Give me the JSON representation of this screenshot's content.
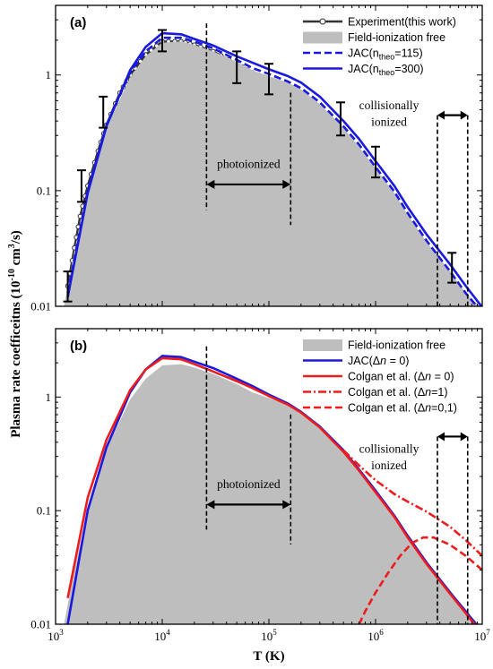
{
  "figure": {
    "ylabel": "Plasma rate coefficeitns (10",
    "ylabel_exp": "-10",
    "ylabel_units": " cm",
    "ylabel_units_exp": "3",
    "ylabel_tail": "/s)",
    "xlabel": "T (K)"
  },
  "chart_data": [
    {
      "panel": "(a)",
      "type": "line",
      "x_scale": "log",
      "y_scale": "log",
      "xlim": [
        1000,
        10000000
      ],
      "ylim": [
        0.01,
        4
      ],
      "x_ticks": [
        "10^3",
        "10^4",
        "10^5",
        "10^6",
        "10^7"
      ],
      "y_ticks": [
        "0.01",
        "0.1",
        "1"
      ],
      "series": [
        {
          "name": "Experiment(this work)",
          "style": "dark-gray line with circle markers",
          "color": "#333333",
          "x": [
            1300,
            1500,
            1700,
            2000,
            2500,
            3000,
            4000,
            5000,
            7000,
            10000,
            15000,
            20000,
            30000,
            50000,
            70000,
            100000,
            150000,
            200000,
            300000,
            500000,
            700000,
            1000000,
            1500000,
            2000000,
            3000000,
            5000000,
            7000000,
            10000000
          ],
          "y": [
            0.015,
            0.032,
            0.06,
            0.11,
            0.22,
            0.37,
            0.7,
            1.0,
            1.5,
            1.95,
            1.95,
            1.82,
            1.6,
            1.25,
            1.05,
            0.92,
            0.82,
            0.7,
            0.52,
            0.32,
            0.22,
            0.14,
            0.085,
            0.055,
            0.032,
            0.018,
            0.012,
            0.009
          ]
        },
        {
          "name": "Field-ionization free",
          "style": "gray filled area",
          "color": "#bebebe",
          "x": [
            1200,
            1500,
            2000,
            3000,
            5000,
            7000,
            10000,
            15000,
            20000,
            30000,
            50000,
            70000,
            100000,
            150000,
            200000,
            300000,
            500000,
            700000,
            1000000,
            1500000,
            2000000,
            3000000,
            5000000,
            7000000,
            10000000
          ],
          "y": [
            0.01,
            0.03,
            0.1,
            0.35,
            0.95,
            1.45,
            1.9,
            1.95,
            1.82,
            1.6,
            1.3,
            1.1,
            0.98,
            0.86,
            0.75,
            0.56,
            0.35,
            0.24,
            0.155,
            0.095,
            0.062,
            0.036,
            0.02,
            0.013,
            0.0095
          ]
        },
        {
          "name": "JAC(n_theo=115)",
          "label_main": "JAC(n",
          "label_sub": "theo",
          "label_tail": "=115)",
          "style": "blue dashed",
          "color": "#1a1adc",
          "x": [
            1300,
            2000,
            3000,
            5000,
            7000,
            10000,
            15000,
            20000,
            30000,
            50000,
            70000,
            100000,
            150000,
            200000,
            300000,
            500000,
            700000,
            1000000,
            1500000,
            2000000,
            3000000,
            5000000,
            7000000,
            10000000
          ],
          "y": [
            0.013,
            0.1,
            0.37,
            1.05,
            1.6,
            2.1,
            2.1,
            1.95,
            1.7,
            1.35,
            1.15,
            1.02,
            0.88,
            0.77,
            0.58,
            0.36,
            0.25,
            0.16,
            0.098,
            0.064,
            0.037,
            0.02,
            0.013,
            0.0088
          ]
        },
        {
          "name": "JAC(n_theo=300)",
          "label_main": "JAC(n",
          "label_sub": "theo",
          "label_tail": "=300)",
          "style": "blue solid",
          "color": "#1a1adc",
          "x": [
            1300,
            2000,
            3000,
            5000,
            7000,
            10000,
            15000,
            20000,
            30000,
            50000,
            70000,
            100000,
            150000,
            200000,
            300000,
            500000,
            700000,
            1000000,
            1500000,
            2000000,
            3000000,
            5000000,
            7000000,
            10000000
          ],
          "y": [
            0.012,
            0.095,
            0.36,
            1.1,
            1.75,
            2.3,
            2.25,
            2.05,
            1.8,
            1.45,
            1.28,
            1.12,
            0.98,
            0.86,
            0.65,
            0.4,
            0.28,
            0.18,
            0.11,
            0.072,
            0.042,
            0.023,
            0.015,
            0.0098
          ]
        }
      ],
      "error_bars": [
        {
          "x": 1300,
          "y": 0.015,
          "lo": 0.011,
          "hi": 0.02
        },
        {
          "x": 1750,
          "y": 0.11,
          "lo": 0.08,
          "hi": 0.15
        },
        {
          "x": 2800,
          "y": 0.5,
          "lo": 0.35,
          "hi": 0.65
        },
        {
          "x": 10000,
          "y": 1.95,
          "lo": 1.6,
          "hi": 2.45
        },
        {
          "x": 50000,
          "y": 1.25,
          "lo": 0.85,
          "hi": 1.6
        },
        {
          "x": 100000,
          "y": 0.92,
          "lo": 0.68,
          "hi": 1.25
        },
        {
          "x": 470000,
          "y": 0.45,
          "lo": 0.3,
          "hi": 0.58
        },
        {
          "x": 1000000,
          "y": 0.2,
          "lo": 0.13,
          "hi": 0.24
        },
        {
          "x": 5200000,
          "y": 0.022,
          "lo": 0.016,
          "hi": 0.029
        }
      ],
      "annotations": {
        "photoionized": "photoionized",
        "photo_range": [
          26000,
          160000
        ],
        "collisional_line1": "collisionally",
        "collisional_line2": "ionized",
        "collisional_range": [
          3800000,
          7300000
        ]
      }
    },
    {
      "panel": "(b)",
      "type": "line",
      "x_scale": "log",
      "y_scale": "log",
      "xlim": [
        1000,
        10000000
      ],
      "ylim": [
        0.01,
        4
      ],
      "x_ticks": [
        "10^3",
        "10^4",
        "10^5",
        "10^6",
        "10^7"
      ],
      "y_ticks": [
        "0.01",
        "0.1",
        "1"
      ],
      "series": [
        {
          "name": "Field-ionization free",
          "style": "gray filled area",
          "color": "#bebebe",
          "x": [
            1200,
            1500,
            2000,
            3000,
            5000,
            7000,
            10000,
            15000,
            20000,
            30000,
            50000,
            70000,
            100000,
            150000,
            200000,
            300000,
            500000,
            700000,
            1000000,
            1500000,
            2000000,
            3000000,
            5000000,
            7000000,
            10000000
          ],
          "y": [
            0.01,
            0.03,
            0.1,
            0.35,
            0.95,
            1.45,
            1.9,
            1.95,
            1.82,
            1.6,
            1.3,
            1.1,
            0.98,
            0.86,
            0.75,
            0.56,
            0.35,
            0.24,
            0.155,
            0.095,
            0.062,
            0.036,
            0.02,
            0.013,
            0.0095
          ]
        },
        {
          "name": "JAC(Δn = 0)",
          "label_main": "JAC(Δ",
          "label_italic": "n",
          "label_tail": " = 0)",
          "style": "blue solid",
          "color": "#1a1adc",
          "x": [
            1300,
            2000,
            3000,
            5000,
            7000,
            10000,
            15000,
            20000,
            30000,
            50000,
            70000,
            100000,
            150000,
            200000,
            300000,
            500000,
            700000,
            1000000,
            1500000,
            2000000,
            3000000,
            5000000,
            7000000,
            10000000
          ],
          "y": [
            0.01,
            0.1,
            0.36,
            1.1,
            1.75,
            2.3,
            2.25,
            2.05,
            1.8,
            1.45,
            1.25,
            1.05,
            0.88,
            0.74,
            0.55,
            0.34,
            0.23,
            0.15,
            0.09,
            0.06,
            0.035,
            0.019,
            0.013,
            0.0085
          ]
        },
        {
          "name": "Colgan et al. (Δn = 0)",
          "label_main": "Colgan et al. (Δ",
          "label_italic": "n",
          "label_tail": " = 0)",
          "style": "red solid",
          "color": "#ee1c1c",
          "x": [
            1300,
            2000,
            3000,
            5000,
            7000,
            10000,
            15000,
            20000,
            30000,
            50000,
            70000,
            100000,
            150000,
            200000,
            300000,
            500000,
            700000,
            1000000,
            1500000,
            2000000,
            3000000,
            5000000,
            7000000,
            10000000
          ],
          "y": [
            0.017,
            0.13,
            0.42,
            1.15,
            1.75,
            2.2,
            2.15,
            1.95,
            1.68,
            1.38,
            1.2,
            1.02,
            0.86,
            0.73,
            0.54,
            0.33,
            0.225,
            0.145,
            0.088,
            0.058,
            0.034,
            0.0185,
            0.0125,
            0.0082
          ]
        },
        {
          "name": "Colgan et al. (Δn=1)",
          "label_main": "Colgan et al. (Δ",
          "label_italic": "n",
          "label_tail": "=1)",
          "style": "red dash-dot",
          "color": "#ee1c1c",
          "x": [
            500000,
            700000,
            1000000,
            1500000,
            2000000,
            3000000,
            5000000,
            7000000,
            10000000
          ],
          "y": [
            0.34,
            0.25,
            0.185,
            0.14,
            0.12,
            0.098,
            0.072,
            0.055,
            0.04
          ]
        },
        {
          "name": "Colgan et al. (Δn=0,1)",
          "label_main": "Colgan et al. (Δ",
          "label_italic": "n",
          "label_tail": "=0,1)",
          "style": "red dashed",
          "color": "#ee1c1c",
          "x": [
            700000,
            800000,
            1000000,
            1300000,
            1700000,
            2200000,
            2800000,
            3500000,
            5000000,
            7000000,
            10000000
          ],
          "y": [
            0.01,
            0.013,
            0.019,
            0.028,
            0.04,
            0.052,
            0.058,
            0.058,
            0.05,
            0.04,
            0.03
          ]
        }
      ],
      "annotations": {
        "photoionized": "photoionized",
        "photo_range": [
          26000,
          160000
        ],
        "collisional_line1": "collisionally",
        "collisional_line2": "ionized",
        "collisional_range": [
          3800000,
          7300000
        ]
      }
    }
  ]
}
